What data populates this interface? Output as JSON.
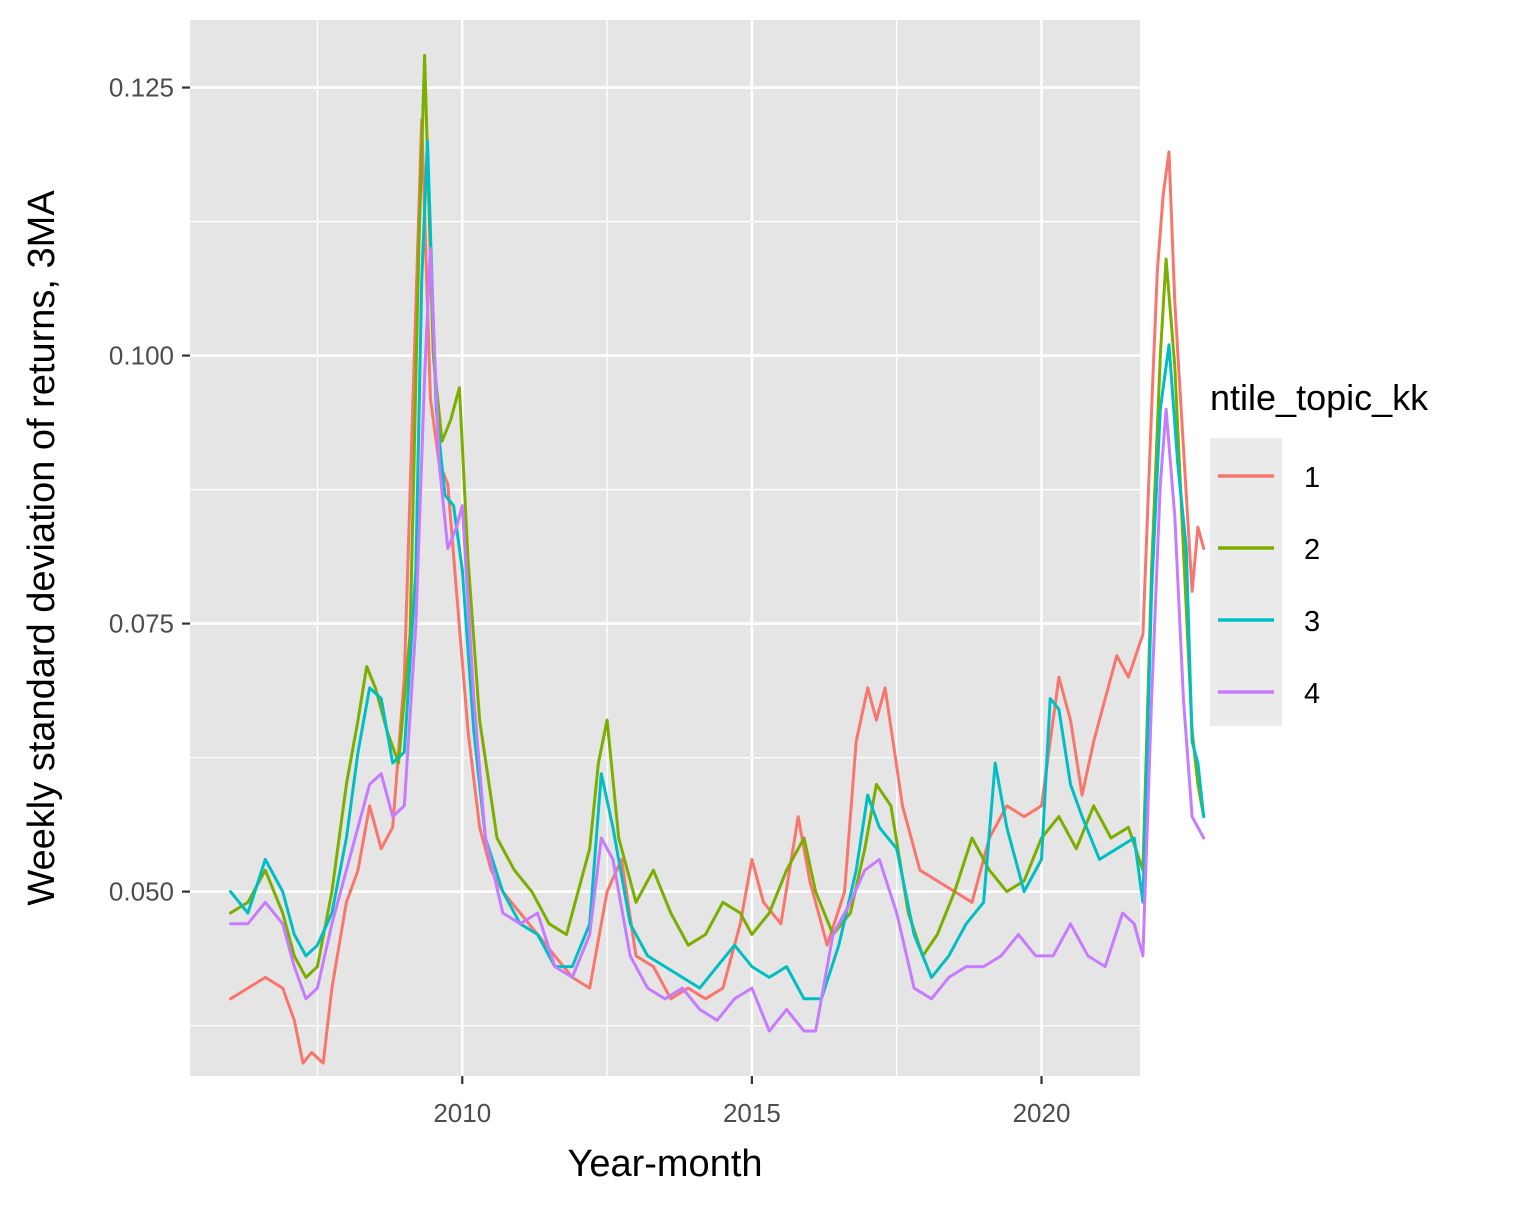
{
  "chart_data": {
    "type": "line",
    "xlabel": "Year-month",
    "ylabel": "Weekly standard deviation of returns, 3MA",
    "x_ticks": [
      2010,
      2015,
      2020
    ],
    "x_tick_labels": [
      "2010",
      "2015",
      "2020"
    ],
    "y_ticks": [
      0.05,
      0.075,
      0.1,
      0.125
    ],
    "y_tick_labels": [
      "0.050",
      "0.075",
      "0.100",
      "0.125"
    ],
    "xlim": [
      2005.3,
      2021.7
    ],
    "ylim": [
      0.0328,
      0.1313
    ],
    "grid": true,
    "legend": {
      "title": "ntile_topic_kk",
      "position": "right"
    },
    "background_color": "#e5e5e5",
    "grid_color": "#ffffff",
    "series": [
      {
        "name": "1",
        "color": "#F8766D",
        "points": [
          [
            2006.0,
            0.04
          ],
          [
            2006.3,
            0.041
          ],
          [
            2006.6,
            0.042
          ],
          [
            2006.9,
            0.041
          ],
          [
            2007.1,
            0.038
          ],
          [
            2007.25,
            0.034
          ],
          [
            2007.4,
            0.035
          ],
          [
            2007.6,
            0.034
          ],
          [
            2007.75,
            0.041
          ],
          [
            2008.0,
            0.049
          ],
          [
            2008.2,
            0.052
          ],
          [
            2008.4,
            0.058
          ],
          [
            2008.6,
            0.054
          ],
          [
            2008.8,
            0.056
          ],
          [
            2009.0,
            0.07
          ],
          [
            2009.15,
            0.096
          ],
          [
            2009.3,
            0.122
          ],
          [
            2009.45,
            0.096
          ],
          [
            2009.6,
            0.09
          ],
          [
            2009.75,
            0.088
          ],
          [
            2009.9,
            0.078
          ],
          [
            2010.1,
            0.065
          ],
          [
            2010.3,
            0.056
          ],
          [
            2010.5,
            0.052
          ],
          [
            2010.7,
            0.05
          ],
          [
            2011.0,
            0.048
          ],
          [
            2011.3,
            0.046
          ],
          [
            2011.6,
            0.044
          ],
          [
            2011.9,
            0.042
          ],
          [
            2012.2,
            0.041
          ],
          [
            2012.5,
            0.05
          ],
          [
            2012.75,
            0.053
          ],
          [
            2013.0,
            0.044
          ],
          [
            2013.3,
            0.043
          ],
          [
            2013.6,
            0.04
          ],
          [
            2013.9,
            0.041
          ],
          [
            2014.2,
            0.04
          ],
          [
            2014.5,
            0.041
          ],
          [
            2014.8,
            0.047
          ],
          [
            2015.0,
            0.053
          ],
          [
            2015.2,
            0.049
          ],
          [
            2015.5,
            0.047
          ],
          [
            2015.8,
            0.057
          ],
          [
            2016.0,
            0.051
          ],
          [
            2016.3,
            0.045
          ],
          [
            2016.6,
            0.05
          ],
          [
            2016.8,
            0.064
          ],
          [
            2017.0,
            0.069
          ],
          [
            2017.15,
            0.066
          ],
          [
            2017.3,
            0.069
          ],
          [
            2017.6,
            0.058
          ],
          [
            2017.9,
            0.052
          ],
          [
            2018.2,
            0.051
          ],
          [
            2018.5,
            0.05
          ],
          [
            2018.8,
            0.049
          ],
          [
            2019.1,
            0.055
          ],
          [
            2019.4,
            0.058
          ],
          [
            2019.7,
            0.057
          ],
          [
            2020.0,
            0.058
          ],
          [
            2020.3,
            0.07
          ],
          [
            2020.5,
            0.066
          ],
          [
            2020.7,
            0.059
          ],
          [
            2020.9,
            0.064
          ],
          [
            2021.1,
            0.068
          ],
          [
            2021.3,
            0.072
          ],
          [
            2021.5,
            0.07
          ],
          [
            2021.75,
            0.074
          ],
          [
            2021.9,
            0.095
          ],
          [
            2022.0,
            0.108
          ],
          [
            2022.1,
            0.115
          ],
          [
            2022.2,
            0.119
          ],
          [
            2022.3,
            0.105
          ],
          [
            2022.4,
            0.096
          ],
          [
            2022.5,
            0.087
          ],
          [
            2022.6,
            0.078
          ],
          [
            2022.7,
            0.084
          ],
          [
            2022.8,
            0.082
          ]
        ]
      },
      {
        "name": "2",
        "color": "#7CAE00",
        "points": [
          [
            2006.0,
            0.048
          ],
          [
            2006.3,
            0.049
          ],
          [
            2006.6,
            0.052
          ],
          [
            2006.9,
            0.048
          ],
          [
            2007.1,
            0.044
          ],
          [
            2007.3,
            0.042
          ],
          [
            2007.5,
            0.043
          ],
          [
            2007.75,
            0.05
          ],
          [
            2008.0,
            0.06
          ],
          [
            2008.2,
            0.066
          ],
          [
            2008.35,
            0.071
          ],
          [
            2008.5,
            0.069
          ],
          [
            2008.7,
            0.065
          ],
          [
            2008.9,
            0.062
          ],
          [
            2009.1,
            0.074
          ],
          [
            2009.25,
            0.11
          ],
          [
            2009.35,
            0.128
          ],
          [
            2009.5,
            0.1
          ],
          [
            2009.65,
            0.092
          ],
          [
            2009.8,
            0.094
          ],
          [
            2009.95,
            0.097
          ],
          [
            2010.1,
            0.081
          ],
          [
            2010.3,
            0.066
          ],
          [
            2010.6,
            0.055
          ],
          [
            2010.9,
            0.052
          ],
          [
            2011.2,
            0.05
          ],
          [
            2011.5,
            0.047
          ],
          [
            2011.8,
            0.046
          ],
          [
            2012.0,
            0.05
          ],
          [
            2012.2,
            0.054
          ],
          [
            2012.35,
            0.062
          ],
          [
            2012.5,
            0.066
          ],
          [
            2012.7,
            0.055
          ],
          [
            2013.0,
            0.049
          ],
          [
            2013.3,
            0.052
          ],
          [
            2013.6,
            0.048
          ],
          [
            2013.9,
            0.045
          ],
          [
            2014.2,
            0.046
          ],
          [
            2014.5,
            0.049
          ],
          [
            2014.8,
            0.048
          ],
          [
            2015.0,
            0.046
          ],
          [
            2015.3,
            0.048
          ],
          [
            2015.6,
            0.052
          ],
          [
            2015.9,
            0.055
          ],
          [
            2016.1,
            0.05
          ],
          [
            2016.4,
            0.046
          ],
          [
            2016.7,
            0.048
          ],
          [
            2016.95,
            0.054
          ],
          [
            2017.15,
            0.06
          ],
          [
            2017.4,
            0.058
          ],
          [
            2017.7,
            0.048
          ],
          [
            2017.95,
            0.044
          ],
          [
            2018.2,
            0.046
          ],
          [
            2018.5,
            0.05
          ],
          [
            2018.8,
            0.055
          ],
          [
            2019.1,
            0.052
          ],
          [
            2019.4,
            0.05
          ],
          [
            2019.7,
            0.051
          ],
          [
            2020.0,
            0.055
          ],
          [
            2020.3,
            0.057
          ],
          [
            2020.6,
            0.054
          ],
          [
            2020.9,
            0.058
          ],
          [
            2021.2,
            0.055
          ],
          [
            2021.5,
            0.056
          ],
          [
            2021.75,
            0.052
          ],
          [
            2021.9,
            0.08
          ],
          [
            2022.05,
            0.1
          ],
          [
            2022.15,
            0.109
          ],
          [
            2022.3,
            0.099
          ],
          [
            2022.45,
            0.082
          ],
          [
            2022.6,
            0.065
          ],
          [
            2022.7,
            0.06
          ],
          [
            2022.8,
            0.057
          ]
        ]
      },
      {
        "name": "3",
        "color": "#00BFC4",
        "points": [
          [
            2006.0,
            0.05
          ],
          [
            2006.3,
            0.048
          ],
          [
            2006.6,
            0.053
          ],
          [
            2006.9,
            0.05
          ],
          [
            2007.1,
            0.046
          ],
          [
            2007.3,
            0.044
          ],
          [
            2007.5,
            0.045
          ],
          [
            2007.75,
            0.048
          ],
          [
            2008.0,
            0.055
          ],
          [
            2008.2,
            0.063
          ],
          [
            2008.4,
            0.069
          ],
          [
            2008.6,
            0.068
          ],
          [
            2008.8,
            0.062
          ],
          [
            2009.0,
            0.063
          ],
          [
            2009.2,
            0.08
          ],
          [
            2009.3,
            0.107
          ],
          [
            2009.4,
            0.12
          ],
          [
            2009.55,
            0.095
          ],
          [
            2009.7,
            0.087
          ],
          [
            2009.85,
            0.086
          ],
          [
            2010.0,
            0.08
          ],
          [
            2010.2,
            0.065
          ],
          [
            2010.4,
            0.055
          ],
          [
            2010.7,
            0.05
          ],
          [
            2011.0,
            0.047
          ],
          [
            2011.3,
            0.046
          ],
          [
            2011.6,
            0.043
          ],
          [
            2011.9,
            0.043
          ],
          [
            2012.2,
            0.047
          ],
          [
            2012.4,
            0.061
          ],
          [
            2012.6,
            0.056
          ],
          [
            2012.9,
            0.047
          ],
          [
            2013.2,
            0.044
          ],
          [
            2013.5,
            0.043
          ],
          [
            2013.8,
            0.042
          ],
          [
            2014.1,
            0.041
          ],
          [
            2014.4,
            0.043
          ],
          [
            2014.7,
            0.045
          ],
          [
            2015.0,
            0.043
          ],
          [
            2015.3,
            0.042
          ],
          [
            2015.6,
            0.043
          ],
          [
            2015.9,
            0.04
          ],
          [
            2016.2,
            0.04
          ],
          [
            2016.5,
            0.045
          ],
          [
            2016.8,
            0.052
          ],
          [
            2017.0,
            0.059
          ],
          [
            2017.2,
            0.056
          ],
          [
            2017.5,
            0.054
          ],
          [
            2017.8,
            0.046
          ],
          [
            2018.1,
            0.042
          ],
          [
            2018.4,
            0.044
          ],
          [
            2018.7,
            0.047
          ],
          [
            2019.0,
            0.049
          ],
          [
            2019.2,
            0.062
          ],
          [
            2019.4,
            0.056
          ],
          [
            2019.7,
            0.05
          ],
          [
            2020.0,
            0.053
          ],
          [
            2020.15,
            0.068
          ],
          [
            2020.3,
            0.067
          ],
          [
            2020.5,
            0.06
          ],
          [
            2020.7,
            0.057
          ],
          [
            2021.0,
            0.053
          ],
          [
            2021.3,
            0.054
          ],
          [
            2021.6,
            0.055
          ],
          [
            2021.75,
            0.049
          ],
          [
            2021.9,
            0.078
          ],
          [
            2022.05,
            0.095
          ],
          [
            2022.2,
            0.101
          ],
          [
            2022.35,
            0.09
          ],
          [
            2022.5,
            0.082
          ],
          [
            2022.6,
            0.064
          ],
          [
            2022.7,
            0.062
          ],
          [
            2022.8,
            0.057
          ]
        ]
      },
      {
        "name": "4",
        "color": "#C77CFF",
        "points": [
          [
            2006.0,
            0.047
          ],
          [
            2006.3,
            0.047
          ],
          [
            2006.6,
            0.049
          ],
          [
            2006.9,
            0.047
          ],
          [
            2007.1,
            0.043
          ],
          [
            2007.3,
            0.04
          ],
          [
            2007.5,
            0.041
          ],
          [
            2007.75,
            0.047
          ],
          [
            2008.0,
            0.052
          ],
          [
            2008.2,
            0.056
          ],
          [
            2008.4,
            0.06
          ],
          [
            2008.6,
            0.061
          ],
          [
            2008.8,
            0.057
          ],
          [
            2009.0,
            0.058
          ],
          [
            2009.2,
            0.075
          ],
          [
            2009.35,
            0.098
          ],
          [
            2009.45,
            0.11
          ],
          [
            2009.6,
            0.09
          ],
          [
            2009.75,
            0.082
          ],
          [
            2009.9,
            0.084
          ],
          [
            2010.0,
            0.086
          ],
          [
            2010.2,
            0.068
          ],
          [
            2010.4,
            0.055
          ],
          [
            2010.7,
            0.048
          ],
          [
            2011.0,
            0.047
          ],
          [
            2011.3,
            0.048
          ],
          [
            2011.6,
            0.043
          ],
          [
            2011.9,
            0.042
          ],
          [
            2012.2,
            0.046
          ],
          [
            2012.4,
            0.055
          ],
          [
            2012.6,
            0.053
          ],
          [
            2012.9,
            0.044
          ],
          [
            2013.2,
            0.041
          ],
          [
            2013.5,
            0.04
          ],
          [
            2013.8,
            0.041
          ],
          [
            2014.1,
            0.039
          ],
          [
            2014.4,
            0.038
          ],
          [
            2014.7,
            0.04
          ],
          [
            2015.0,
            0.041
          ],
          [
            2015.3,
            0.037
          ],
          [
            2015.6,
            0.039
          ],
          [
            2015.9,
            0.037
          ],
          [
            2016.1,
            0.037
          ],
          [
            2016.4,
            0.046
          ],
          [
            2016.7,
            0.049
          ],
          [
            2016.95,
            0.052
          ],
          [
            2017.2,
            0.053
          ],
          [
            2017.5,
            0.048
          ],
          [
            2017.8,
            0.041
          ],
          [
            2018.1,
            0.04
          ],
          [
            2018.4,
            0.042
          ],
          [
            2018.7,
            0.043
          ],
          [
            2019.0,
            0.043
          ],
          [
            2019.3,
            0.044
          ],
          [
            2019.6,
            0.046
          ],
          [
            2019.9,
            0.044
          ],
          [
            2020.2,
            0.044
          ],
          [
            2020.5,
            0.047
          ],
          [
            2020.8,
            0.044
          ],
          [
            2021.1,
            0.043
          ],
          [
            2021.4,
            0.048
          ],
          [
            2021.6,
            0.047
          ],
          [
            2021.75,
            0.044
          ],
          [
            2021.9,
            0.068
          ],
          [
            2022.05,
            0.088
          ],
          [
            2022.15,
            0.095
          ],
          [
            2022.3,
            0.085
          ],
          [
            2022.45,
            0.068
          ],
          [
            2022.6,
            0.057
          ],
          [
            2022.7,
            0.056
          ],
          [
            2022.8,
            0.055
          ]
        ]
      }
    ]
  }
}
